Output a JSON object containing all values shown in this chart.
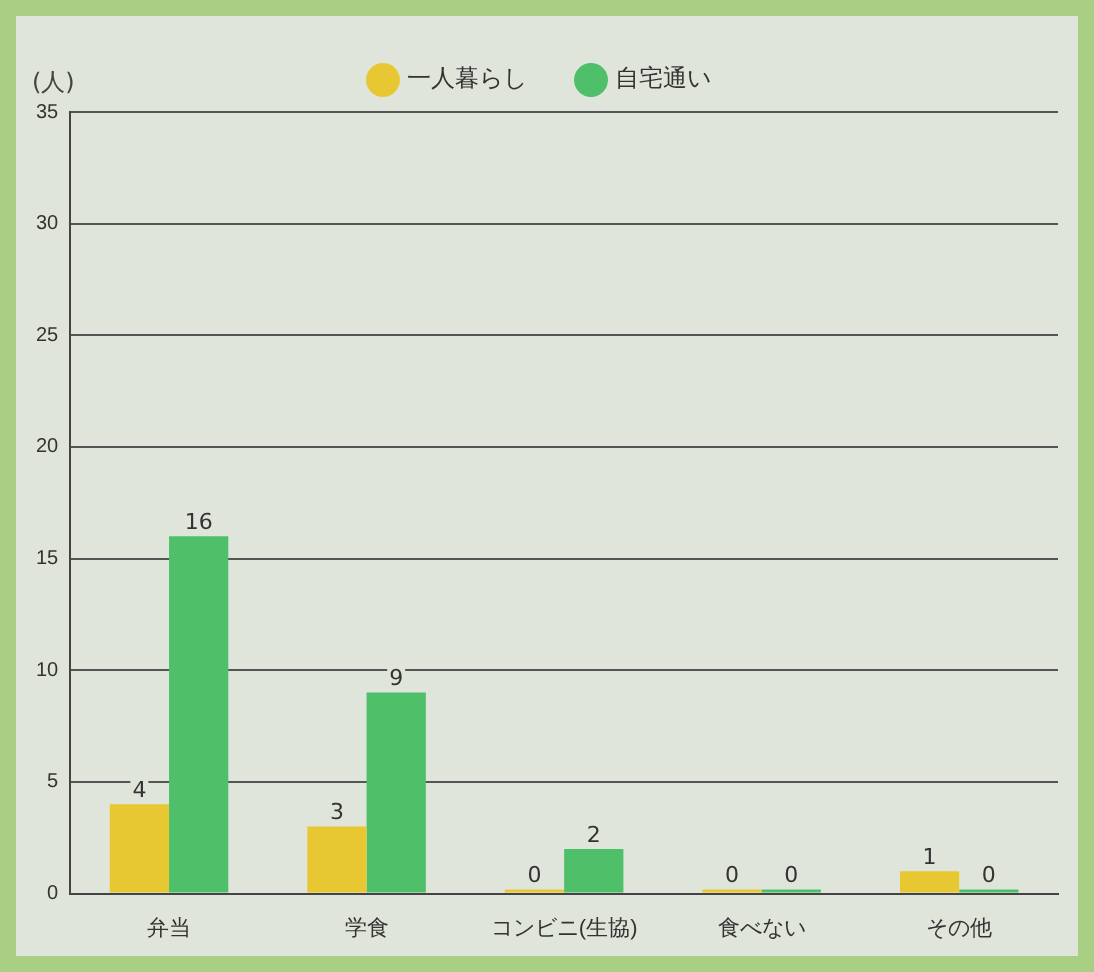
{
  "chart_data": {
    "type": "bar",
    "ylabel": "(人)",
    "categories": [
      "弁当",
      "学食",
      "コンビニ(生協)",
      "食べない",
      "その他"
    ],
    "series": [
      {
        "name": "一人暮らし",
        "color": "#e8c832",
        "values": [
          4,
          3,
          0,
          0,
          1
        ]
      },
      {
        "name": "自宅通い",
        "color": "#4fbf6a",
        "values": [
          16,
          9,
          2,
          0,
          0
        ]
      }
    ],
    "ylim": [
      0,
      35
    ],
    "yticks": [
      0,
      5,
      10,
      15,
      20,
      25,
      30,
      35
    ],
    "grid": "y",
    "legend": "top",
    "data_labels": true
  }
}
